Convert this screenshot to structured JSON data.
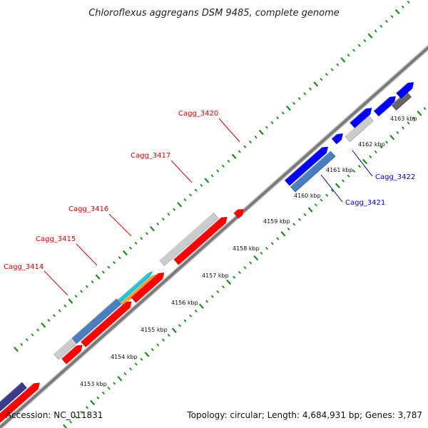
{
  "title": "Chloroflexus aggregans DSM 9485, complete genome",
  "footer": {
    "accession": "Accession: NC_011831",
    "summary": "Topology: circular; Length: 4,684,931 bp; Genes: 3,787"
  },
  "kbp_ticks": [
    "4153 kbp",
    "4154 kbp",
    "4155 kbp",
    "4156 kbp",
    "4157 kbp",
    "4158 kbp",
    "4159 kbp",
    "4160 kbp",
    "4161 kbp",
    "4162 kbp",
    "4163 kbp"
  ],
  "gene_labels": [
    {
      "id": "Cagg_3414",
      "color": "#dd0000"
    },
    {
      "id": "Cagg_3415",
      "color": "#dd0000"
    },
    {
      "id": "Cagg_3416",
      "color": "#dd0000"
    },
    {
      "id": "Cagg_3417",
      "color": "#dd0000"
    },
    {
      "id": "Cagg_3420",
      "color": "#dd0000"
    },
    {
      "id": "Cagg_3421",
      "color": "#0000cc"
    },
    {
      "id": "Cagg_3422",
      "color": "#0000cc"
    }
  ],
  "colors": {
    "backbone": "#888888",
    "tick_green": "#1a8a1a",
    "red": "#ff0000",
    "blue": "#0000ff",
    "steelblue": "#4a7fbf",
    "lightgray": "#cccccc",
    "darkgray": "#666666",
    "indigo": "#3d3a8a",
    "cyan": "#1ec8d8",
    "orange": "#f0a020"
  }
}
